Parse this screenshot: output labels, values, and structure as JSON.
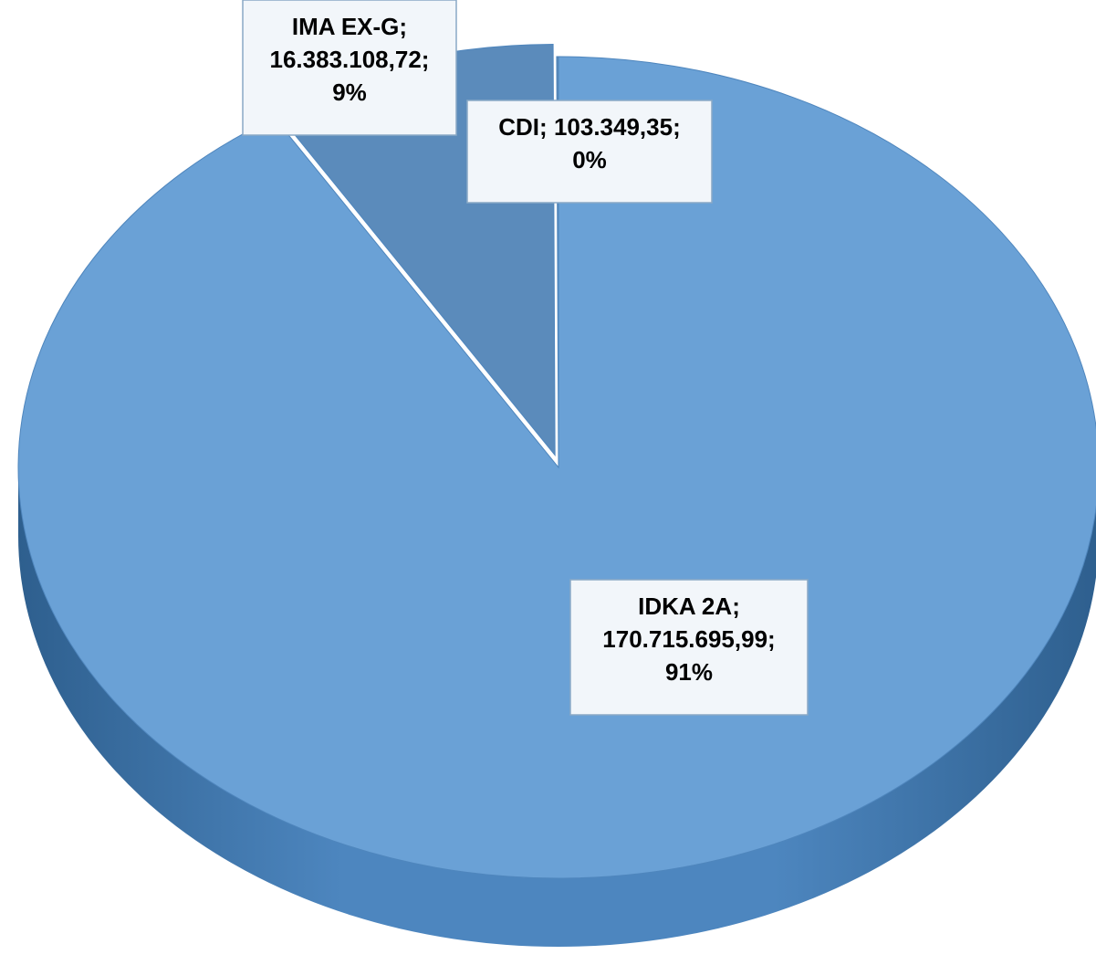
{
  "chart_data": {
    "type": "pie",
    "categories": [
      "IDKA 2A",
      "IMA EX-G",
      "CDI"
    ],
    "values": [
      170715695.99,
      16383108.72,
      103349.35
    ],
    "value_labels": [
      "170.715.695,99",
      "16.383.108,72",
      "103.349,35"
    ],
    "percent_labels": [
      "91%",
      "9%",
      "0%"
    ],
    "separator": ";",
    "colors": [
      "#6aa1d6",
      "#5b8bbb",
      "#5a88b5"
    ]
  }
}
